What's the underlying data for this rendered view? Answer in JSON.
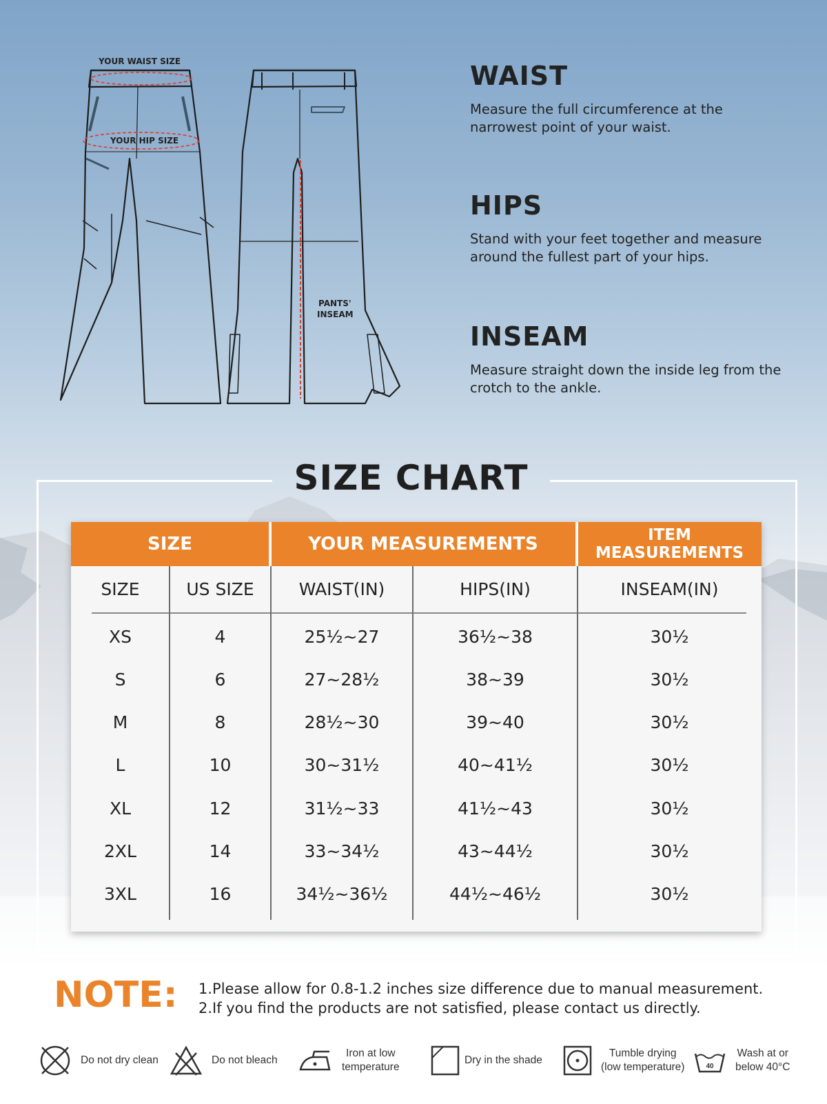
{
  "measurements": {
    "waist": {
      "title": "WAIST",
      "text": "Measure the full circumference at the narrowest point of your waist."
    },
    "hips": {
      "title": "HIPS",
      "text": "Stand with your feet together and measure around the fullest part of your hips."
    },
    "inseam": {
      "title": "INSEAM",
      "text": "Measure straight down the inside leg from the crotch to the ankle."
    }
  },
  "diagram": {
    "waist_label": "YOUR WAIST SIZE",
    "hip_label": "YOUR HIP SIZE",
    "inseam_label_1": "PANTS'",
    "inseam_label_2": "INSEAM",
    "accent": "#d9453b"
  },
  "chart": {
    "title": "SIZE CHART",
    "group_headers": {
      "size": "SIZE",
      "your_measurements": "YOUR MEASUREMENTS",
      "item_measurements_1": "ITEM",
      "item_measurements_2": "MEASUREMENTS"
    },
    "columns": [
      "SIZE",
      "US SIZE",
      "WAIST(IN)",
      "HIPS(IN)",
      "INSEAM(IN)"
    ],
    "rows": [
      [
        "XS",
        "4",
        "25½~27",
        "36½~38",
        "30½"
      ],
      [
        "S",
        "6",
        "27~28½",
        "38~39",
        "30½"
      ],
      [
        "M",
        "8",
        "28½~30",
        "39~40",
        "30½"
      ],
      [
        "L",
        "10",
        "30~31½",
        "40~41½",
        "30½"
      ],
      [
        "XL",
        "12",
        "31½~33",
        "41½~43",
        "30½"
      ],
      [
        "2XL",
        "14",
        "33~34½",
        "43~44½",
        "30½"
      ],
      [
        "3XL",
        "16",
        "34½~36½",
        "44½~46½",
        "30½"
      ]
    ],
    "header_color": "#ea8329"
  },
  "note": {
    "label": "NOTE:",
    "lines": [
      "1.Please allow for 0.8-1.2 inches size difference due to manual measurement.",
      "2.If you find the products are not satisfied, please contact us directly."
    ]
  },
  "care": [
    {
      "icon": "no-dry-clean-icon",
      "line1": "Do not dry clean",
      "line2": ""
    },
    {
      "icon": "no-bleach-icon",
      "line1": "Do not bleach",
      "line2": ""
    },
    {
      "icon": "iron-low-icon",
      "line1": "Iron at low",
      "line2": "temperature"
    },
    {
      "icon": "dry-shade-icon",
      "line1": "Dry in the shade",
      "line2": ""
    },
    {
      "icon": "tumble-dry-low-icon",
      "line1": "Tumble drying",
      "line2": "(low temperature)"
    },
    {
      "icon": "wash-40-icon",
      "line1": "Wash at or",
      "line2": "below 40°C",
      "tub_text": "40"
    }
  ]
}
